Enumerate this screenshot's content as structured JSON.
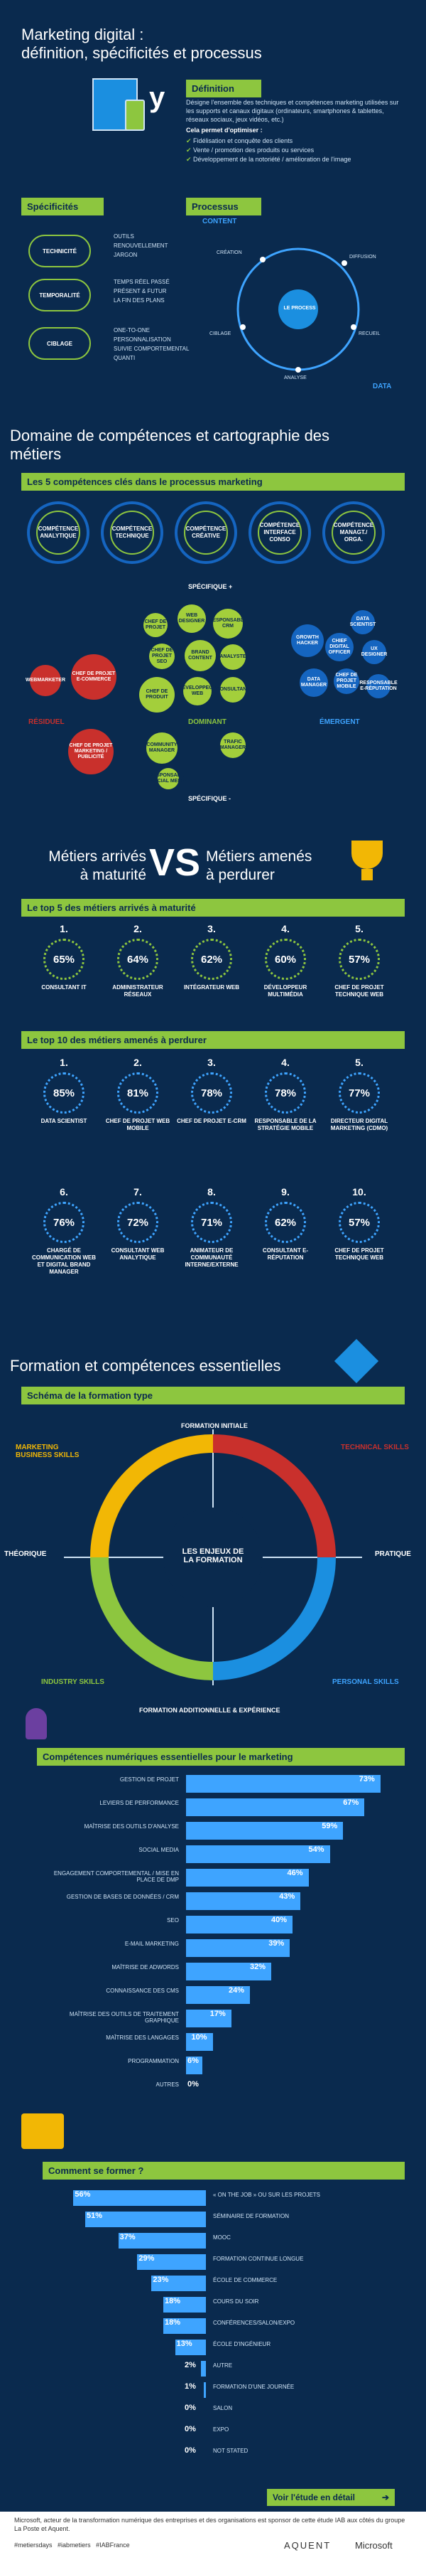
{
  "header": {
    "title_line1": "Marketing digital :",
    "title_line2": "définition, spécificités et processus"
  },
  "definition": {
    "label": "Définition",
    "text": "Désigne l'ensemble des techniques et compétences marketing utilisées sur les supports et canaux digitaux (ordinateurs, smartphones & tablettes, réseaux sociaux, jeux vidéos, etc.)",
    "allows_label": "Cela permet d'optimiser :",
    "items": [
      "Fidélisation et conquête des clients",
      "Vente / promotion des produits ou services",
      "Développement de la notoriété / amélioration de l'image"
    ]
  },
  "specificites": {
    "label": "Spécificités",
    "groups": [
      {
        "name": "TECHNICITÉ",
        "items": [
          "OUTILS",
          "RENOUVELLEMENT",
          "JARGON"
        ]
      },
      {
        "name": "TEMPORALITÉ",
        "items": [
          "TEMPS RÉEL PASSÉ",
          "PRÉSENT & FUTUR",
          "LA FIN DES PLANS"
        ]
      },
      {
        "name": "CIBLAGE",
        "items": [
          "ONE-TO-ONE",
          "PERSONNALISATION",
          "SUIVIE COMPORTEMENTAL QUANTI"
        ]
      }
    ]
  },
  "processus": {
    "label": "Processus",
    "content": "CONTENT",
    "data": "DATA",
    "center": "LE PROCESS",
    "nodes": [
      "CRÉATION",
      "DIFFUSION",
      "CIBLAGE",
      "RECUEIL",
      "ANALYSE"
    ]
  },
  "domain": {
    "title_line1": "Domaine de compétences et cartographie des",
    "title_line2": "métiers",
    "bar": "Les 5 compétences clés dans le processus marketing",
    "competences": [
      "COMPÉTENCE ANALYTIQUE",
      "COMPÉTENCE TECHNIQUE",
      "COMPÉTENCE CRÉATIVE",
      "COMPÉTENCE INTERFACE CONSO",
      "COMPÉTENCE MANAGT./ ORGA."
    ],
    "specifique_plus": "SPÉCIFIQUE +",
    "specifique_minus": "SPÉCIFIQUE -",
    "residuel": "RÉSIDUEL",
    "dominant": "DOMINANT",
    "emergent": "ÉMERGENT",
    "red_bubbles": [
      "CHEF DE PROJET E-COMMERCE",
      "WEBMARKETER",
      "CHEF DE PROJET MARKETING / PUBLICITÉ"
    ],
    "green_bubbles": [
      "CHEF DE PROJET",
      "WEB DESIGNER",
      "RESPONSABLE CRM",
      "CHEF DE PROJET SEO",
      "BRAND CONTENT",
      "ANALYSTE",
      "CHEF DE PRODUIT",
      "DÉVELOPPEUR WEB",
      "CONSULTANT",
      "COMMUNITY MANAGER",
      "TRAFIC MANAGER",
      "RESPONSABLE SOCIAL MEDIA"
    ],
    "blue_bubbles": [
      "DATA SCIENTIST",
      "GROWTH HACKER",
      "CHIEF DIGITAL OFFICER",
      "UX DESIGNER",
      "DATA MANAGER",
      "CHEF DE PROJET MOBILE",
      "RESPONSABLE E-RÉPUTATION"
    ]
  },
  "vs": {
    "left": "Métiers arrivés\nà maturité",
    "middle": "VS",
    "right": "Métiers amenés\nà perdurer"
  },
  "top5": {
    "bar": "Le top 5 des métiers arrivés à maturité",
    "items": [
      {
        "rank": "1.",
        "pct": "65%",
        "label": "CONSULTANT IT"
      },
      {
        "rank": "2.",
        "pct": "64%",
        "label": "ADMINISTRATEUR RÉSEAUX"
      },
      {
        "rank": "3.",
        "pct": "62%",
        "label": "INTÉGRATEUR WEB"
      },
      {
        "rank": "4.",
        "pct": "60%",
        "label": "DÉVELOPPEUR MULTIMÉDIA"
      },
      {
        "rank": "5.",
        "pct": "57%",
        "label": "CHEF DE PROJET TECHNIQUE WEB"
      }
    ]
  },
  "top10": {
    "bar": "Le top 10 des métiers amenés à perdurer",
    "items": [
      {
        "rank": "1.",
        "pct": "85%",
        "label": "DATA SCIENTIST"
      },
      {
        "rank": "2.",
        "pct": "81%",
        "label": "CHEF DE PROJET WEB MOBILE"
      },
      {
        "rank": "3.",
        "pct": "78%",
        "label": "CHEF DE PROJET E-CRM"
      },
      {
        "rank": "4.",
        "pct": "78%",
        "label": "RESPONSABLE DE LA STRATÉGIE MOBILE"
      },
      {
        "rank": "5.",
        "pct": "77%",
        "label": "DIRECTEUR DIGITAL MARKETING (CDMO)"
      },
      {
        "rank": "6.",
        "pct": "76%",
        "label": "CHARGÉ DE COMMUNICATION WEB ET DIGITAL BRAND MANAGER"
      },
      {
        "rank": "7.",
        "pct": "72%",
        "label": "CONSULTANT WEB ANALYTIQUE"
      },
      {
        "rank": "8.",
        "pct": "71%",
        "label": "ANIMATEUR DE COMMUNAUTÉ INTERNE/EXTERNE"
      },
      {
        "rank": "9.",
        "pct": "62%",
        "label": "CONSULTANT E-RÉPUTATION"
      },
      {
        "rank": "10.",
        "pct": "57%",
        "label": "CHEF DE PROJET TECHNIQUE WEB"
      }
    ]
  },
  "formation": {
    "title": "Formation et compétences essentielles",
    "bar": "Schéma de la formation type",
    "initiale": "FORMATION INITIALE",
    "additionnelle": "FORMATION ADDITIONNELLE & EXPÉRIENCE",
    "marketing": "MARKETING BUSINESS SKILLS",
    "technical": "TECHNICAL SKILLS",
    "industry": "INDUSTRY SKILLS",
    "personal": "PERSONAL SKILLS",
    "theorique": "THÉORIQUE",
    "pratique": "PRATIQUE",
    "center": "LES ENJEUX DE LA FORMATION"
  },
  "competences_bar": "Compétences numériques essentielles pour le marketing",
  "chart_data": [
    {
      "type": "bar",
      "title": "Compétences numériques essentielles pour le marketing",
      "categories": [
        "GESTION DE PROJET",
        "LEVIERS DE PERFORMANCE",
        "MAÎTRISE DES OUTILS D'ANALYSE",
        "SOCIAL MEDIA",
        "ENGAGEMENT COMPORTEMENTAL / MISE EN PLACE DE DMP",
        "GESTION DE BASES DE DONNÉES / CRM",
        "SEO",
        "E-MAIL MARKETING",
        "MAÎTRISE DE ADWORDS",
        "CONNAISSANCE DES CMS",
        "MAÎTRISE DES OUTILS DE TRAITEMENT GRAPHIQUE",
        "MAÎTRISE DES LANGAGES",
        "PROGRAMMATION",
        "AUTRES"
      ],
      "values": [
        73,
        67,
        59,
        54,
        46,
        43,
        40,
        39,
        32,
        24,
        17,
        10,
        6,
        0
      ],
      "xlim": [
        0,
        80
      ]
    },
    {
      "type": "bar",
      "title": "Comment se former ?",
      "categories": [
        "« ON THE JOB » OU SUR LES PROJETS",
        "SÉMINAIRE DE FORMATION",
        "MOOC",
        "FORMATION CONTINUE LONGUE",
        "ÉCOLE DE COMMERCE",
        "COURS DU SOIR",
        "CONFÉRENCES/SALON/EXPO",
        "ÉCOLE D'INGÉNIEUR",
        "AUTRE",
        "FORMATION D'UNE JOURNÉE",
        "SALON",
        "EXPO",
        "NOT STATED"
      ],
      "values": [
        56,
        51,
        37,
        29,
        23,
        18,
        18,
        13,
        2,
        1,
        0,
        0,
        0
      ],
      "xlim": [
        0,
        60
      ]
    }
  ],
  "comment": {
    "bar": "Comment se former ?"
  },
  "cta": {
    "label": "Voir l'étude en détail"
  },
  "footer": {
    "text": "Microsoft, acteur de la transformation numérique des entreprises et des organisations est sponsor de cette étude IAB aux côtés du groupe La Poste et Aquent.",
    "tags": [
      "#metiersdays",
      "#iabmetiers",
      "#IABFrance"
    ],
    "aquent": "AQUENT",
    "microsoft": "Microsoft"
  }
}
